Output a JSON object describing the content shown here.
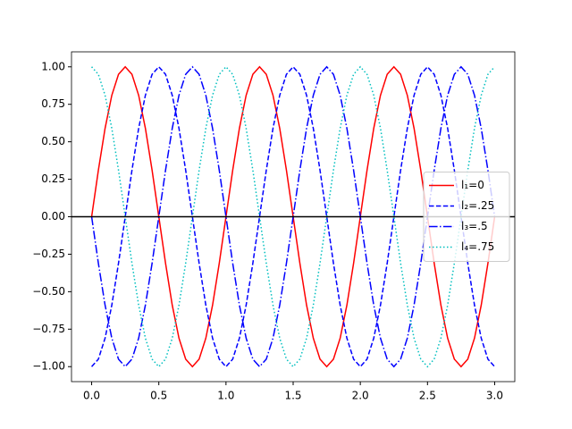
{
  "chart_data": {
    "type": "line",
    "x": [
      0,
      0.05,
      0.1,
      0.15,
      0.2,
      0.25,
      0.3,
      0.35,
      0.4,
      0.45,
      0.5,
      0.55,
      0.6,
      0.65,
      0.7,
      0.75,
      0.8,
      0.85,
      0.9,
      0.95,
      1,
      1.05,
      1.1,
      1.15,
      1.2,
      1.25,
      1.3,
      1.35,
      1.4,
      1.45,
      1.5,
      1.55,
      1.6,
      1.65,
      1.7,
      1.75,
      1.8,
      1.85,
      1.9,
      1.95,
      2,
      2.05,
      2.1,
      2.15,
      2.2,
      2.25,
      2.3,
      2.35,
      2.4,
      2.45,
      2.5,
      2.55,
      2.6,
      2.65,
      2.7,
      2.75,
      2.8,
      2.85,
      2.9,
      2.95,
      3
    ],
    "series": [
      {
        "name": "l₁=0",
        "color": "#ff0000",
        "linestyle": "solid",
        "values": [
          0,
          0.31,
          0.59,
          0.81,
          0.95,
          1,
          0.95,
          0.81,
          0.59,
          0.31,
          0,
          -0.31,
          -0.59,
          -0.81,
          -0.95,
          -1,
          -0.95,
          -0.81,
          -0.59,
          -0.31,
          0,
          0.31,
          0.59,
          0.81,
          0.95,
          1,
          0.95,
          0.81,
          0.59,
          0.31,
          0,
          -0.31,
          -0.59,
          -0.81,
          -0.95,
          -1,
          -0.95,
          -0.81,
          -0.59,
          -0.31,
          0,
          0.31,
          0.59,
          0.81,
          0.95,
          1,
          0.95,
          0.81,
          0.59,
          0.31,
          0,
          -0.31,
          -0.59,
          -0.81,
          -0.95,
          -1,
          -0.95,
          -0.81,
          -0.59,
          -0.31,
          0
        ]
      },
      {
        "name": "l₂=.25",
        "color": "#0000ff",
        "linestyle": "dashed",
        "values": [
          -1,
          -0.95,
          -0.81,
          -0.59,
          -0.31,
          0,
          0.31,
          0.59,
          0.81,
          0.95,
          1,
          0.95,
          0.81,
          0.59,
          0.31,
          0,
          -0.31,
          -0.59,
          -0.81,
          -0.95,
          -1,
          -0.95,
          -0.81,
          -0.59,
          -0.31,
          0,
          0.31,
          0.59,
          0.81,
          0.95,
          1,
          0.95,
          0.81,
          0.59,
          0.31,
          0,
          -0.31,
          -0.59,
          -0.81,
          -0.95,
          -1,
          -0.95,
          -0.81,
          -0.59,
          -0.31,
          0,
          0.31,
          0.59,
          0.81,
          0.95,
          1,
          0.95,
          0.81,
          0.59,
          0.31,
          0,
          -0.31,
          -0.59,
          -0.81,
          -0.95,
          -1
        ]
      },
      {
        "name": "l₃=.5",
        "color": "#0000ff",
        "linestyle": "dashdot",
        "values": [
          0,
          -0.31,
          -0.59,
          -0.81,
          -0.95,
          -1,
          -0.95,
          -0.81,
          -0.59,
          -0.31,
          0,
          0.31,
          0.59,
          0.81,
          0.95,
          1,
          0.95,
          0.81,
          0.59,
          0.31,
          0,
          -0.31,
          -0.59,
          -0.81,
          -0.95,
          -1,
          -0.95,
          -0.81,
          -0.59,
          -0.31,
          0,
          0.31,
          0.59,
          0.81,
          0.95,
          1,
          0.95,
          0.81,
          0.59,
          0.31,
          0,
          -0.31,
          -0.59,
          -0.81,
          -0.95,
          -1,
          -0.95,
          -0.81,
          -0.59,
          -0.31,
          0,
          0.31,
          0.59,
          0.81,
          0.95,
          1,
          0.95,
          0.81,
          0.59,
          0.31,
          0
        ]
      },
      {
        "name": "l₄=.75",
        "color": "#00bfbf",
        "linestyle": "dotted",
        "values": [
          1,
          0.95,
          0.81,
          0.59,
          0.31,
          0,
          -0.31,
          -0.59,
          -0.81,
          -0.95,
          -1,
          -0.95,
          -0.81,
          -0.59,
          -0.31,
          0,
          0.31,
          0.59,
          0.81,
          0.95,
          1,
          0.95,
          0.81,
          0.59,
          0.31,
          0,
          -0.31,
          -0.59,
          -0.81,
          -0.95,
          -1,
          -0.95,
          -0.81,
          -0.59,
          -0.31,
          0,
          0.31,
          0.59,
          0.81,
          0.95,
          1,
          0.95,
          0.81,
          0.59,
          0.31,
          0,
          -0.31,
          -0.59,
          -0.81,
          -0.95,
          -1,
          -0.95,
          -0.81,
          -0.59,
          -0.31,
          0,
          0.31,
          0.59,
          0.81,
          0.95,
          1
        ]
      }
    ],
    "xlim": [
      -0.15,
      3.15
    ],
    "xticks": [
      {
        "value": 0,
        "label": "0.0"
      },
      {
        "value": 0.5,
        "label": "0.5"
      },
      {
        "value": 1,
        "label": "1.0"
      },
      {
        "value": 1.5,
        "label": "1.5"
      },
      {
        "value": 2,
        "label": "2.0"
      },
      {
        "value": 2.5,
        "label": "2.5"
      },
      {
        "value": 3,
        "label": "3.0"
      }
    ],
    "ylim": [
      -1.1,
      1.1
    ],
    "yticks": [
      {
        "value": -1,
        "label": "−1.00"
      },
      {
        "value": -0.75,
        "label": "−0.75"
      },
      {
        "value": -0.5,
        "label": "−0.50"
      },
      {
        "value": -0.25,
        "label": "−0.25"
      },
      {
        "value": 0,
        "label": "0.00"
      },
      {
        "value": 0.25,
        "label": "0.25"
      },
      {
        "value": 0.5,
        "label": "0.50"
      },
      {
        "value": 0.75,
        "label": "0.75"
      },
      {
        "value": 1,
        "label": "1.00"
      }
    ],
    "axhline": 0,
    "axhline_color": "#000000",
    "legend": "center right",
    "grid": false
  }
}
